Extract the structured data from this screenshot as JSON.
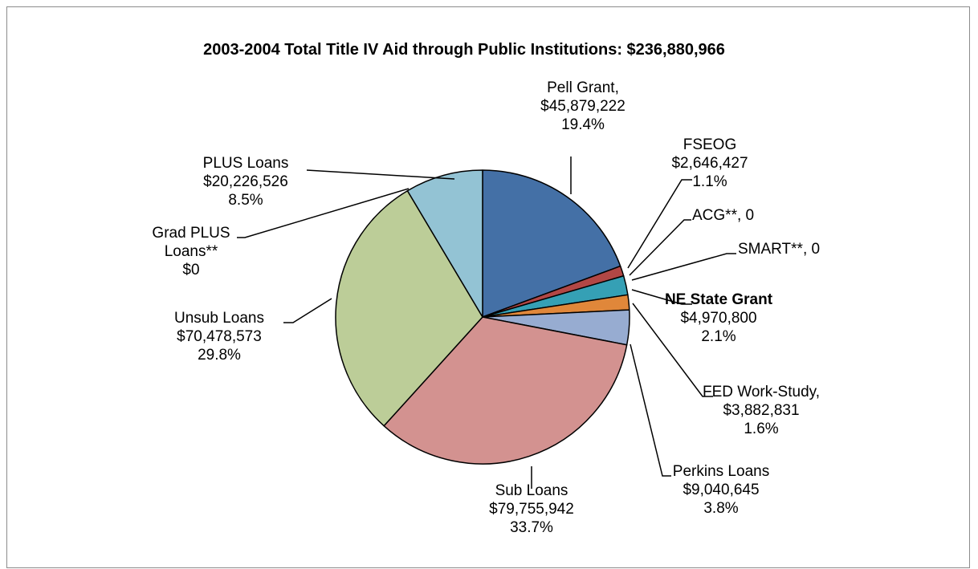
{
  "chart_data": {
    "type": "pie",
    "title": "2003-2004 Total Title IV Aid through Public Institutions:  $236,880,966",
    "slices": [
      {
        "key": "pell",
        "value": 45879222,
        "color": "#4470a6",
        "label": [
          "Pell Grant,",
          "$45,879,222",
          "19.4%"
        ]
      },
      {
        "key": "fseog",
        "value": 2646427,
        "color": "#b24745",
        "label": [
          "FSEOG",
          "$2,646,427",
          "1.1%"
        ]
      },
      {
        "key": "acg",
        "value": 0,
        "color": "#8aa54e",
        "label": [
          "ACG**, 0"
        ]
      },
      {
        "key": "smart",
        "value": 0,
        "color": "#7a5c9a",
        "label": [
          "SMART**, 0"
        ]
      },
      {
        "key": "ne-state-grant",
        "value": 4970800,
        "color": "#35a0b5",
        "label": [
          "NE State Grant",
          "$4,970,800",
          "2.1%"
        ],
        "bold_first": true
      },
      {
        "key": "fed-work-study",
        "value": 3882831,
        "color": "#e0873a",
        "label": [
          "FED Work-Study,",
          "$3,882,831",
          "1.6%"
        ]
      },
      {
        "key": "perkins",
        "value": 9040645,
        "color": "#97acd1",
        "label": [
          "Perkins Loans",
          "$9,040,645",
          "3.8%"
        ]
      },
      {
        "key": "sub",
        "value": 79755942,
        "color": "#d39290",
        "label": [
          "Sub Loans",
          "$79,755,942",
          "33.7%"
        ]
      },
      {
        "key": "unsub",
        "value": 70478573,
        "color": "#bccd98",
        "label": [
          "Unsub Loans",
          "$70,478,573",
          "29.8%"
        ]
      },
      {
        "key": "grad-plus",
        "value": 0,
        "color": "#a797bf",
        "label": [
          "Grad PLUS",
          "Loans**",
          "$0"
        ]
      },
      {
        "key": "plus",
        "value": 20226526,
        "color": "#93c3d4",
        "label": [
          "PLUS Loans",
          "$20,226,526",
          "8.5%"
        ]
      }
    ]
  }
}
